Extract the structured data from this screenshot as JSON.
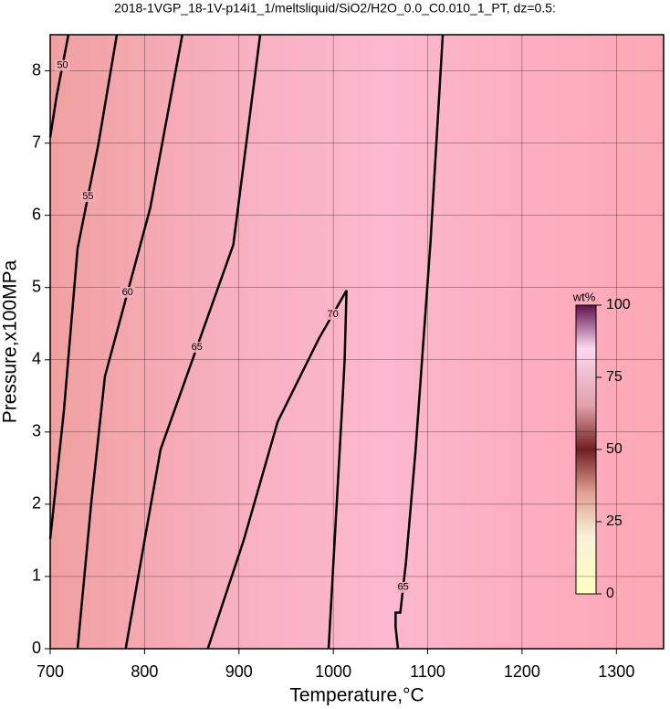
{
  "chart_data": {
    "type": "contour",
    "title": "2018-1VGP_18-1V-p14i1_1/meltsliquid/SiO2/H2O_0.0_C0.010_1_PT, dz=0.5:",
    "xlabel": "Temperature,°C",
    "ylabel": "Pressure,x100MPa",
    "xlim": [
      700,
      1350
    ],
    "ylim": [
      0,
      8.5
    ],
    "xticks": [
      700,
      800,
      900,
      1000,
      1100,
      1200,
      1300
    ],
    "yticks": [
      0,
      1,
      2,
      3,
      4,
      5,
      6,
      7,
      8
    ],
    "grid": true,
    "color": "#000000",
    "colorbar": {
      "label": "wt%",
      "lim": [
        0,
        100
      ],
      "ticks": [
        0,
        25,
        50,
        75,
        100
      ]
    },
    "contours": [
      {
        "label": "50",
        "x": [
          700,
          706.8,
          719.3
        ],
        "y": [
          7.08,
          7.65,
          8.5
        ]
      },
      {
        "label": "55",
        "x": [
          700,
          714.5,
          729,
          751,
          770.6
        ],
        "y": [
          1.52,
          3.29,
          5.54,
          6.98,
          8.5
        ]
      },
      {
        "label": "60",
        "x": [
          729,
          743.5,
          758,
          806,
          840
        ],
        "y": [
          0,
          2.02,
          3.77,
          6.1,
          8.5
        ]
      },
      {
        "label": "65",
        "x": [
          780,
          800,
          817,
          894,
          922.5
        ],
        "y": [
          0,
          1.5,
          2.76,
          5.59,
          8.5
        ]
      },
      {
        "label": "70",
        "x": [
          867,
          905,
          941,
          985,
          1014,
          1012,
          1010,
          995
        ],
        "y": [
          0,
          1.5,
          3.14,
          4.3,
          4.96,
          4.0,
          3.5,
          0
        ]
      },
      {
        "label": "65",
        "x": [
          1068.5,
          1066,
          1066,
          1071,
          1077,
          1087,
          1103,
          1116
        ],
        "y": [
          0,
          0.3,
          0.5,
          0.5,
          1.2,
          2.72,
          5.63,
          8.5
        ]
      }
    ]
  }
}
